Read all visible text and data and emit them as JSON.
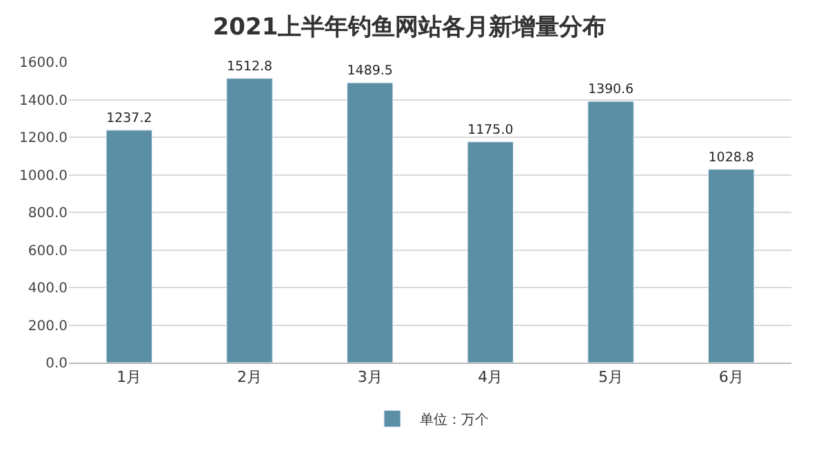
{
  "chart_data": {
    "type": "bar",
    "title": "2021上半年钓鱼网站各月新增量分布",
    "categories": [
      "1月",
      "2月",
      "3月",
      "4月",
      "5月",
      "6月"
    ],
    "series": [
      {
        "name": "单位：万个",
        "color": "#5b8fa5",
        "values": [
          1237.2,
          1512.8,
          1489.5,
          1175.0,
          1390.6,
          1028.8
        ],
        "value_labels": [
          "1237.2",
          "1512.8",
          "1489.5",
          "1175.0",
          "1390.6",
          "1028.8"
        ]
      }
    ],
    "ylim": [
      0,
      1600
    ],
    "yticks": [
      {
        "value": 0,
        "label": "0.0"
      },
      {
        "value": 200,
        "label": "200.0"
      },
      {
        "value": 400,
        "label": "400.0"
      },
      {
        "value": 600,
        "label": "600.0"
      },
      {
        "value": 800,
        "label": "800.0"
      },
      {
        "value": 1000,
        "label": "1000.0"
      },
      {
        "value": 1200,
        "label": "1200.0"
      },
      {
        "value": 1400,
        "label": "1400.0"
      },
      {
        "value": 1600,
        "label": "1600.0"
      }
    ],
    "grid": "y",
    "legend": "bottom"
  }
}
